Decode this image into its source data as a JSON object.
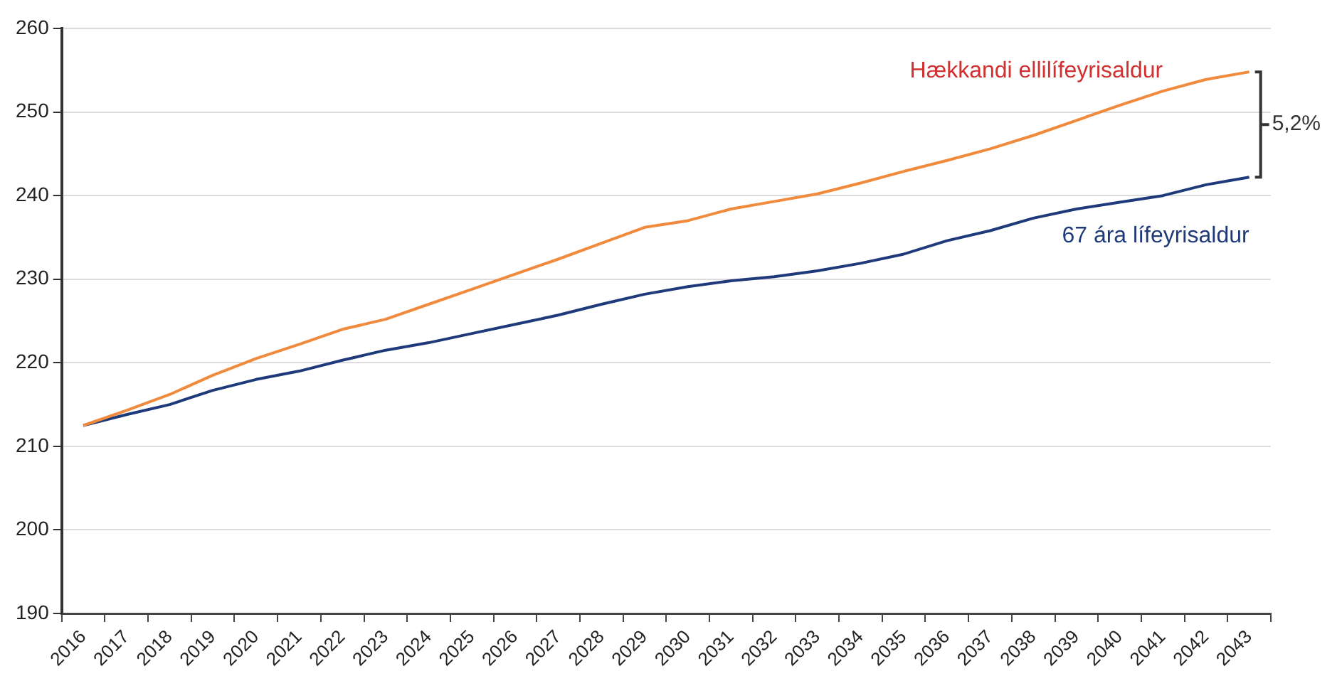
{
  "chart_data": {
    "type": "line",
    "categories": [
      "2016",
      "2017",
      "2018",
      "2019",
      "2020",
      "2021",
      "2022",
      "2023",
      "2024",
      "2025",
      "2026",
      "2027",
      "2028",
      "2029",
      "2030",
      "2031",
      "2032",
      "2033",
      "2034",
      "2035",
      "2036",
      "2037",
      "2038",
      "2039",
      "2040",
      "2041",
      "2042",
      "2043"
    ],
    "series": [
      {
        "name": "Hækkandi ellilífeyrisaldur",
        "color": "#f08a3c",
        "values": [
          212.5,
          214.3,
          216.2,
          218.5,
          220.5,
          222.2,
          224.0,
          225.2,
          227.0,
          228.8,
          230.6,
          232.4,
          234.3,
          236.2,
          237.0,
          238.4,
          239.3,
          240.2,
          241.5,
          242.9,
          244.2,
          245.6,
          247.2,
          249.0,
          250.8,
          252.5,
          253.9,
          254.8
        ]
      },
      {
        "name": "67 ára lífeyrisaldur",
        "color": "#1f3a7a",
        "values": [
          212.5,
          213.8,
          215.0,
          216.7,
          218.0,
          219.0,
          220.3,
          221.5,
          222.4,
          223.5,
          224.6,
          225.7,
          227.0,
          228.2,
          229.1,
          229.8,
          230.3,
          231.0,
          231.9,
          233.0,
          234.6,
          235.8,
          237.3,
          238.4,
          239.2,
          240.0,
          241.3,
          242.2
        ]
      }
    ],
    "ylim": [
      190,
      260
    ],
    "yticks": [
      190,
      200,
      210,
      220,
      230,
      240,
      250,
      260
    ],
    "grid": "y",
    "legend": false,
    "marker": "none",
    "line_style": "solid",
    "annotations": [
      "5,2%"
    ]
  }
}
